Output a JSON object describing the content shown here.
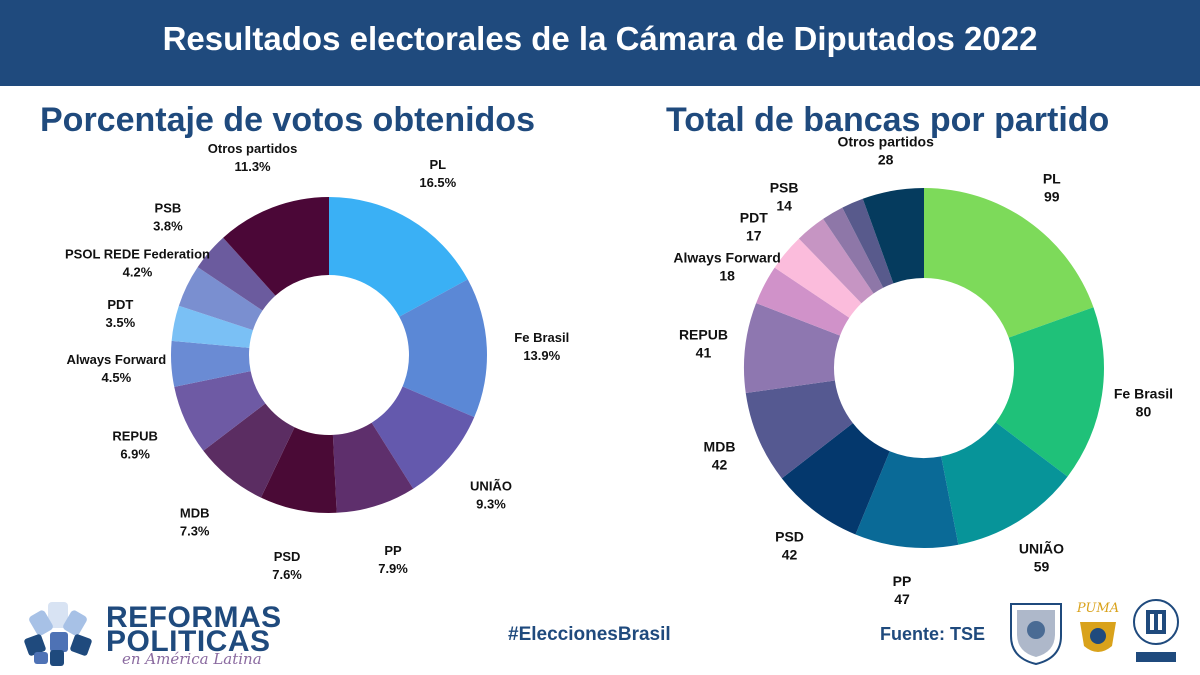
{
  "header": {
    "title": "Resultados electorales de la Cámara de Diputados 2022"
  },
  "footer": {
    "logo_line1": "REFORMAS",
    "logo_line2": "POLITICAS",
    "logo_tagline": "en América Latina",
    "hashtag": "#EleccionesBrasil",
    "source": "Fuente: TSE",
    "logo_puma_text": "PUMA"
  },
  "colors": {
    "banner": "#1f4a7d",
    "title": "#1f4a7d"
  },
  "chart_data": [
    {
      "type": "pie",
      "variant": "donut",
      "title": "Porcentaje de votos obtenidos",
      "slices": [
        {
          "label": "PL",
          "value": 16.5,
          "value_label": "16.5%",
          "color": "#3ab0f5"
        },
        {
          "label": "Fe Brasil",
          "value": 13.9,
          "value_label": "13.9%",
          "color": "#5b88d6"
        },
        {
          "label": "UNIÃO",
          "value": 9.3,
          "value_label": "9.3%",
          "color": "#6459ad"
        },
        {
          "label": "PP",
          "value": 7.9,
          "value_label": "7.9%",
          "color": "#5e2f6c"
        },
        {
          "label": "PSD",
          "value": 7.6,
          "value_label": "7.6%",
          "color": "#4a0a36"
        },
        {
          "label": "MDB",
          "value": 7.3,
          "value_label": "7.3%",
          "color": "#5b2d62"
        },
        {
          "label": "REPUB",
          "value": 6.9,
          "value_label": "6.9%",
          "color": "#6e5aa4"
        },
        {
          "label": "Always Forward",
          "value": 4.5,
          "value_label": "4.5%",
          "color": "#6a8bd4"
        },
        {
          "label": "PDT",
          "value": 3.5,
          "value_label": "3.5%",
          "color": "#7ac0f5"
        },
        {
          "label": "PSOL REDE Federation",
          "value": 4.2,
          "value_label": "4.2%",
          "color": "#7a8fd0"
        },
        {
          "label": "PSB",
          "value": 3.8,
          "value_label": "3.8%",
          "color": "#6b5b9e"
        },
        {
          "label": "Otros partidos",
          "value": 11.3,
          "value_label": "11.3%",
          "color": "#4b0737"
        }
      ]
    },
    {
      "type": "pie",
      "variant": "donut",
      "title": "Total de bancas por partido",
      "slices": [
        {
          "label": "PL",
          "value": 99,
          "value_label": "99",
          "color": "#7dda5a"
        },
        {
          "label": "Fe Brasil",
          "value": 80,
          "value_label": "80",
          "color": "#1fc179"
        },
        {
          "label": "UNIÃO",
          "value": 59,
          "value_label": "59",
          "color": "#079499"
        },
        {
          "label": "PP",
          "value": 47,
          "value_label": "47",
          "color": "#0a6a97"
        },
        {
          "label": "PSD",
          "value": 42,
          "value_label": "42",
          "color": "#04386d"
        },
        {
          "label": "MDB",
          "value": 42,
          "value_label": "42",
          "color": "#555991"
        },
        {
          "label": "REPUB",
          "value": 41,
          "value_label": "41",
          "color": "#8e77b0"
        },
        {
          "label": "Always Forward",
          "value": 18,
          "value_label": "18",
          "color": "#d092c9"
        },
        {
          "label": "PDT",
          "value": 17,
          "value_label": "17",
          "color": "#fbbcdc"
        },
        {
          "label": "PSB",
          "value": 14,
          "value_label": "14",
          "color": "#c695c3"
        },
        {
          "label": "",
          "value": 10,
          "value_label": "",
          "color": "#8e77a8"
        },
        {
          "label": "",
          "value": 10,
          "value_label": "",
          "color": "#585a8c"
        },
        {
          "label": "Otros partidos",
          "value": 28,
          "value_label": "28",
          "color": "#053b5e"
        }
      ]
    }
  ]
}
